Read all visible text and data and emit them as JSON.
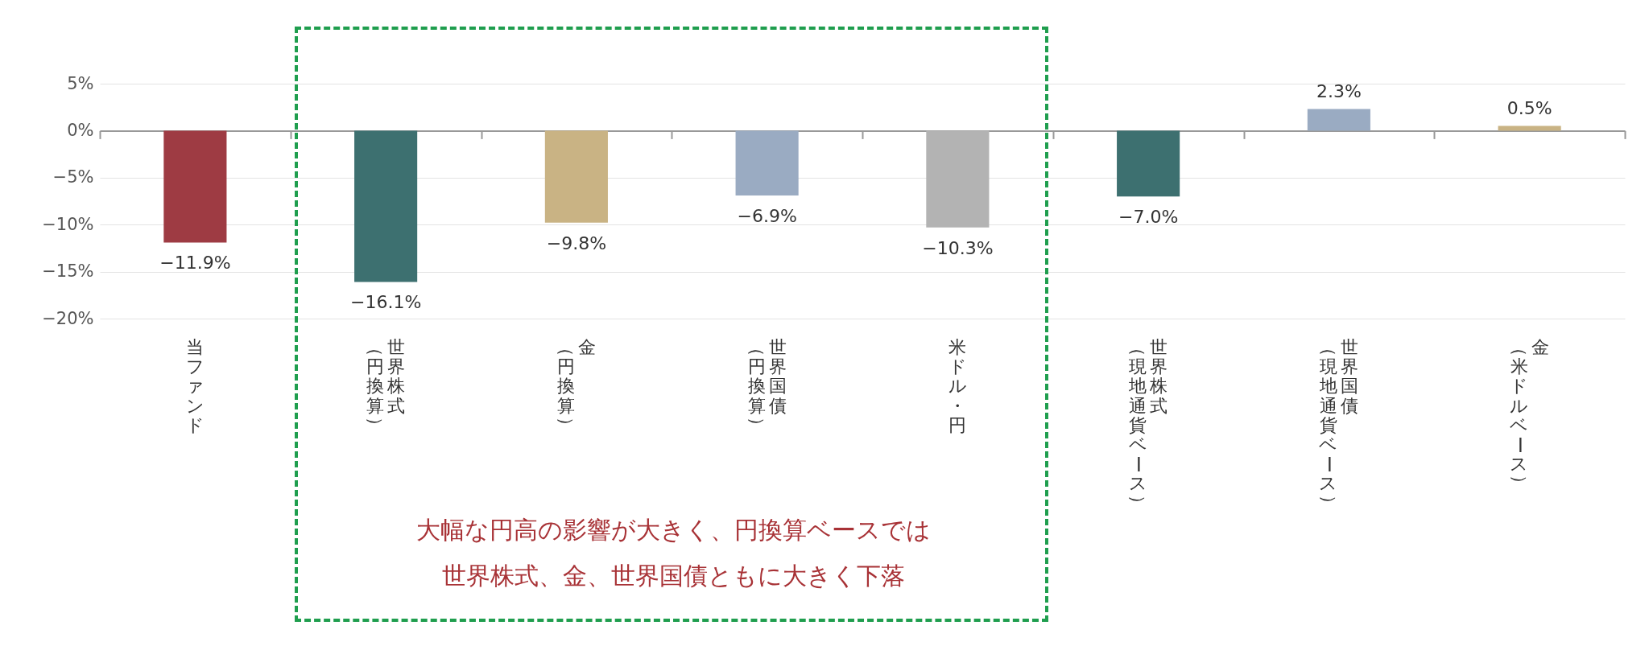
{
  "chart_data": {
    "type": "bar",
    "categories": [
      "当ファンド",
      "世界株式（円換算）",
      "金（円換算）",
      "世界国債（円換算）",
      "米ドル・円",
      "世界株式（現地通貨ベース）",
      "世界国債（現地通貨ベース）",
      "金（米ドルベース）"
    ],
    "values": [
      -11.9,
      -16.1,
      -9.8,
      -6.9,
      -10.3,
      -7.0,
      2.3,
      0.5
    ],
    "value_labels": [
      "−11.9%",
      "−16.1%",
      "−9.8%",
      "−6.9%",
      "−10.3%",
      "−7.0%",
      "2.3%",
      "0.5%"
    ],
    "colors": [
      "#9e3b43",
      "#3d7070",
      "#c9b384",
      "#9aabc2",
      "#b3b3b3",
      "#3d7070",
      "#9aabc2",
      "#c9b384"
    ],
    "ylim": [
      -20,
      5
    ],
    "yticks": [
      {
        "value": 5,
        "label": "5%"
      },
      {
        "value": 0,
        "label": "0%"
      },
      {
        "value": -5,
        "label": "−5%"
      },
      {
        "value": -10,
        "label": "−10%"
      },
      {
        "value": -15,
        "label": "−15%"
      },
      {
        "value": -20,
        "label": "−20%"
      }
    ],
    "grid": "y",
    "annotations": [
      "大幅な円高の影響が大きく、円換算ベースでは世界株式、金、世界国債ともに大きく下落"
    ]
  }
}
